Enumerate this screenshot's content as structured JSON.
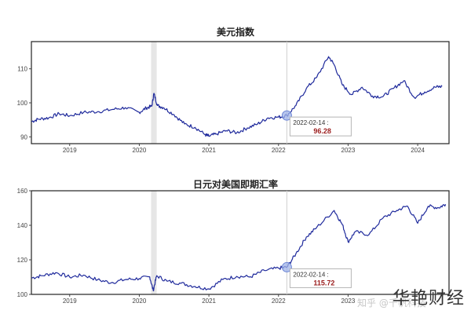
{
  "chart_data": [
    {
      "type": "line",
      "title": "美元指数",
      "x_tick_labels": [
        "2019",
        "2020",
        "2021",
        "2022",
        "2023",
        "2024"
      ],
      "x_ticks": [
        2019.0,
        2020.0,
        2021.0,
        2022.0,
        2023.0,
        2024.0
      ],
      "xlim": [
        2018.45,
        2024.45
      ],
      "y_tick_labels": [
        "90",
        "100",
        "110"
      ],
      "y_ticks": [
        90,
        100,
        110
      ],
      "ylim": [
        88,
        118
      ],
      "grid": false,
      "highlight_band": [
        2020.17,
        2020.25
      ],
      "marker_line_x": 2022.12,
      "annotation": {
        "date": "2022-02-14 :",
        "value": "96.28",
        "x": 2022.12,
        "y": 96.28
      },
      "series": [
        {
          "color": "#1f2a9c",
          "x": [
            2018.45,
            2018.55,
            2018.7,
            2018.85,
            2019.0,
            2019.2,
            2019.4,
            2019.6,
            2019.8,
            2020.0,
            2020.1,
            2020.18,
            2020.21,
            2020.26,
            2020.35,
            2020.5,
            2020.65,
            2020.8,
            2020.95,
            2021.0,
            2021.1,
            2021.25,
            2021.4,
            2021.55,
            2021.7,
            2021.85,
            2022.0,
            2022.12,
            2022.25,
            2022.4,
            2022.55,
            2022.72,
            2022.8,
            2022.92,
            2023.05,
            2023.2,
            2023.35,
            2023.5,
            2023.65,
            2023.8,
            2023.95,
            2024.1,
            2024.25,
            2024.35
          ],
          "y": [
            94.5,
            95.2,
            95.6,
            96.8,
            96.2,
            97.2,
            97.4,
            98.0,
            98.6,
            97.2,
            98.5,
            99.0,
            102.8,
            99.2,
            98.6,
            96.5,
            93.8,
            92.8,
            90.6,
            90.2,
            90.8,
            91.8,
            91.2,
            92.6,
            93.8,
            95.6,
            95.8,
            96.28,
            99.2,
            104.2,
            107.5,
            113.6,
            111.2,
            105.2,
            102.4,
            104.6,
            102.0,
            101.8,
            104.2,
            106.5,
            101.6,
            103.2,
            104.6,
            104.8
          ]
        }
      ]
    },
    {
      "type": "line",
      "title": "日元对美国即期汇率",
      "x_tick_labels": [
        "2019",
        "2020",
        "2021",
        "2022",
        "2023"
      ],
      "x_ticks": [
        2019.0,
        2020.0,
        2021.0,
        2022.0,
        2023.0
      ],
      "xlim": [
        2018.45,
        2024.45
      ],
      "y_tick_labels": [
        "100",
        "120",
        "140",
        "160"
      ],
      "y_ticks": [
        100,
        120,
        140,
        160
      ],
      "ylim": [
        100,
        160
      ],
      "grid": false,
      "highlight_band": [
        2020.17,
        2020.25
      ],
      "marker_line_x": 2022.12,
      "annotation": {
        "date": "2022-02-14 :",
        "value": "115.72",
        "x": 2022.12,
        "y": 115.72
      },
      "series": [
        {
          "color": "#1f2a9c",
          "x": [
            2018.45,
            2018.6,
            2018.8,
            2019.0,
            2019.2,
            2019.4,
            2019.6,
            2019.8,
            2020.0,
            2020.15,
            2020.2,
            2020.25,
            2020.4,
            2020.6,
            2020.8,
            2021.0,
            2021.2,
            2021.4,
            2021.6,
            2021.8,
            2022.0,
            2022.12,
            2022.25,
            2022.4,
            2022.55,
            2022.8,
            2022.92,
            2023.0,
            2023.1,
            2023.3,
            2023.5,
            2023.7,
            2023.85,
            2024.0,
            2024.15,
            2024.3,
            2024.4
          ],
          "y": [
            109.5,
            110.8,
            112.6,
            110.0,
            111.2,
            108.4,
            106.8,
            108.6,
            109.2,
            110.2,
            102.2,
            110.8,
            107.6,
            106.4,
            104.6,
            103.2,
            108.6,
            110.4,
            110.2,
            113.8,
            115.2,
            115.72,
            123.5,
            133.2,
            138.8,
            148.6,
            140.2,
            130.4,
            136.2,
            134.6,
            144.2,
            148.6,
            151.2,
            141.2,
            151.0,
            150.2,
            152.2
          ]
        }
      ]
    }
  ],
  "watermark": "华艳财经",
  "source_text": "知乎 @千帆科技"
}
